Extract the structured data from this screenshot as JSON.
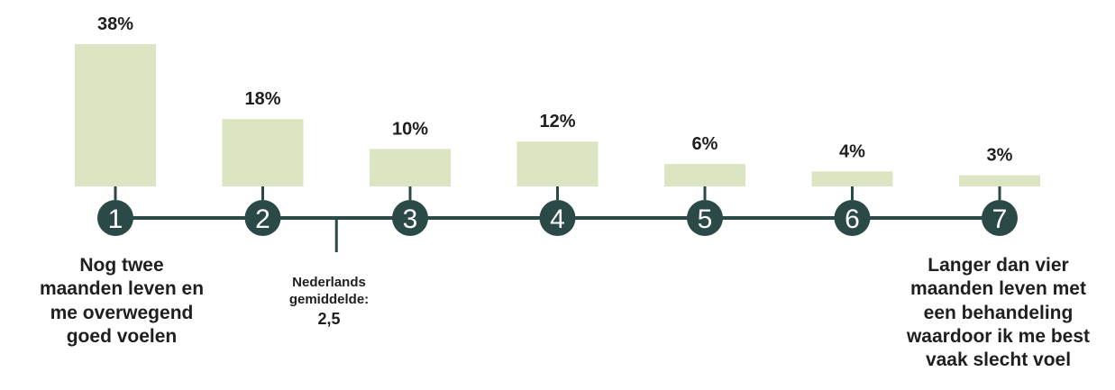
{
  "colors": {
    "bar": "#dce5c2",
    "line": "#2b4a47",
    "node": "#2b4a47",
    "node_text": "#ffffff",
    "value_text": "#1f1f1f"
  },
  "chart_data": {
    "type": "bar",
    "categories": [
      "1",
      "2",
      "3",
      "4",
      "5",
      "6",
      "7"
    ],
    "values": [
      38,
      18,
      10,
      12,
      6,
      4,
      3
    ],
    "value_labels": [
      "38%",
      "18%",
      "10%",
      "12%",
      "6%",
      "4%",
      "3%"
    ],
    "ylim": [
      0,
      38
    ],
    "grid": false,
    "legend": "none",
    "average": {
      "value": 2.5,
      "label": "Nederlands\ngemiddelde:",
      "value_label": "2,5"
    },
    "scale_ends": {
      "left": "Nog twee\nmaanden leven en\nme overwegend\ngoed voelen",
      "right": "Langer dan vier\nmaanden leven met\neen behandeling\nwaardoor ik me best\nvaak slecht voel"
    }
  }
}
